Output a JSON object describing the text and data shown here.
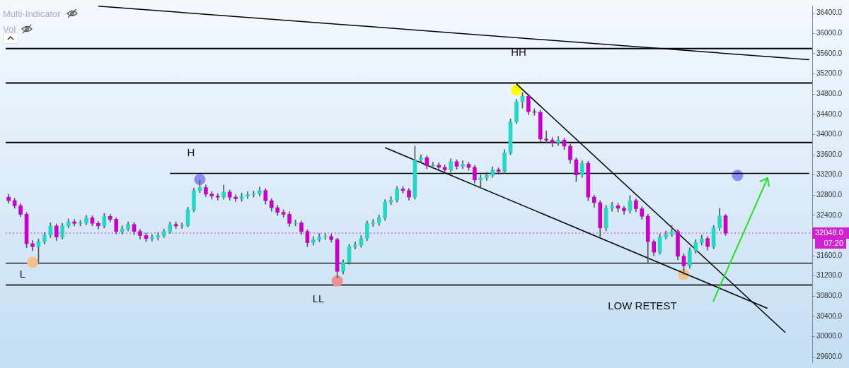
{
  "chart_data": {
    "type": "candlestick",
    "ylim": [
      29490,
      36550
    ],
    "categories": [
      null,
      null,
      null,
      null,
      null,
      null,
      null,
      null,
      null,
      null,
      null,
      null,
      null,
      null,
      null,
      null,
      null,
      null,
      null,
      null,
      null,
      null,
      null,
      null,
      null,
      null,
      null,
      null,
      null,
      null,
      null,
      null,
      null,
      null,
      null,
      null,
      null,
      null,
      null,
      null,
      null,
      null,
      null,
      null,
      null,
      null,
      null,
      null,
      null,
      null,
      null,
      null,
      null,
      null,
      null,
      null,
      null,
      null,
      null,
      null,
      null,
      null,
      null,
      null,
      null,
      null,
      null,
      null,
      null,
      null,
      null,
      null,
      null,
      null,
      null,
      null,
      null,
      null,
      null,
      null,
      null,
      null,
      null,
      null,
      null,
      null,
      null,
      null,
      null,
      null,
      null,
      null,
      null,
      null,
      null,
      null,
      null,
      null,
      null,
      null,
      null,
      null,
      null,
      null,
      null,
      null,
      null,
      null,
      null,
      null,
      null,
      null,
      null,
      null,
      null,
      null,
      null,
      null,
      null,
      null,
      null,
      null,
      null,
      null,
      null,
      null,
      null,
      null,
      null,
      null,
      null,
      null,
      null,
      null,
      null
    ],
    "yticks": [
      {
        "value": 29600,
        "label": "29600.0"
      },
      {
        "value": 30000,
        "label": "30000.0"
      },
      {
        "value": 30400,
        "label": "30400.0"
      },
      {
        "value": 30800,
        "label": "30800.0"
      },
      {
        "value": 31200,
        "label": "31200.0"
      },
      {
        "value": 31600,
        "label": "31600.0"
      },
      {
        "value": 32400,
        "label": "32400.0"
      },
      {
        "value": 32800,
        "label": "32800.0"
      },
      {
        "value": 33200,
        "label": "33200.0"
      },
      {
        "value": 33600,
        "label": "33600.0"
      },
      {
        "value": 34000,
        "label": "34000.0"
      },
      {
        "value": 34400,
        "label": "34400.0"
      },
      {
        "value": 34800,
        "label": "34800.0"
      },
      {
        "value": 35200,
        "label": "35200.0"
      },
      {
        "value": 35600,
        "label": "35600.0"
      },
      {
        "value": 36000,
        "label": "36000.0"
      },
      {
        "value": 36400,
        "label": "36400.0"
      }
    ],
    "tick_labels": "y",
    "grid": false,
    "legend": false,
    "series": [
      {
        "type": "candlestick",
        "ohlc": [
          [
            32760,
            32820,
            32640,
            32690
          ],
          [
            32690,
            32740,
            32540,
            32590
          ],
          [
            32590,
            32630,
            32370,
            32420
          ],
          [
            32420,
            32460,
            31760,
            31840
          ],
          [
            31840,
            31900,
            31700,
            31780
          ],
          [
            31780,
            31930,
            31470,
            31880
          ],
          [
            31880,
            32060,
            31830,
            32010
          ],
          [
            32010,
            32250,
            31960,
            32190
          ],
          [
            32190,
            32230,
            31900,
            31970
          ],
          [
            31970,
            32240,
            31930,
            32190
          ],
          [
            32190,
            32330,
            32150,
            32270
          ],
          [
            32270,
            32320,
            32190,
            32240
          ],
          [
            32240,
            32300,
            32190,
            32250
          ],
          [
            32250,
            32400,
            32210,
            32350
          ],
          [
            32350,
            32390,
            32190,
            32240
          ],
          [
            32240,
            32280,
            32130,
            32190
          ],
          [
            32190,
            32440,
            32150,
            32380
          ],
          [
            32380,
            32420,
            32270,
            32320
          ],
          [
            32320,
            32350,
            32030,
            32080
          ],
          [
            32080,
            32190,
            32030,
            32130
          ],
          [
            32130,
            32270,
            32090,
            32220
          ],
          [
            32220,
            32260,
            32020,
            32080
          ],
          [
            32080,
            32120,
            31930,
            32000
          ],
          [
            32000,
            32050,
            31880,
            31940
          ],
          [
            31940,
            32020,
            31890,
            31970
          ],
          [
            31970,
            32060,
            31910,
            32000
          ],
          [
            32000,
            32130,
            31960,
            32080
          ],
          [
            32080,
            32270,
            32040,
            32220
          ],
          [
            32220,
            32270,
            32140,
            32190
          ],
          [
            32190,
            32250,
            32140,
            32200
          ],
          [
            32200,
            32560,
            32170,
            32510
          ],
          [
            32510,
            32940,
            32470,
            32890
          ],
          [
            32890,
            33100,
            32850,
            32950
          ],
          [
            32950,
            33000,
            32770,
            32820
          ],
          [
            32820,
            32870,
            32720,
            32780
          ],
          [
            32780,
            32830,
            32700,
            32760
          ],
          [
            32760,
            33000,
            32720,
            32860
          ],
          [
            32860,
            32900,
            32700,
            32760
          ],
          [
            32760,
            32810,
            32670,
            32730
          ],
          [
            32730,
            32840,
            32680,
            32780
          ],
          [
            32780,
            32870,
            32730,
            32810
          ],
          [
            32810,
            32880,
            32760,
            32820
          ],
          [
            32820,
            32960,
            32780,
            32890
          ],
          [
            32890,
            32930,
            32620,
            32690
          ],
          [
            32690,
            32730,
            32480,
            32550
          ],
          [
            32550,
            32600,
            32400,
            32460
          ],
          [
            32460,
            32510,
            32360,
            32420
          ],
          [
            32420,
            32470,
            32180,
            32240
          ],
          [
            32240,
            32310,
            32190,
            32250
          ],
          [
            32250,
            32290,
            32020,
            32080
          ],
          [
            32080,
            32120,
            31780,
            31860
          ],
          [
            31860,
            31980,
            31810,
            31920
          ],
          [
            31920,
            32040,
            31880,
            31970
          ],
          [
            31970,
            32040,
            31920,
            31980
          ],
          [
            31980,
            32030,
            31870,
            31920
          ],
          [
            31920,
            31950,
            31160,
            31290
          ],
          [
            31290,
            31520,
            31240,
            31470
          ],
          [
            31470,
            31830,
            31430,
            31780
          ],
          [
            31780,
            31870,
            31730,
            31810
          ],
          [
            31810,
            32000,
            31770,
            31940
          ],
          [
            31940,
            32290,
            31900,
            32240
          ],
          [
            32240,
            32320,
            32180,
            32250
          ],
          [
            32250,
            32410,
            32200,
            32350
          ],
          [
            32350,
            32710,
            32300,
            32660
          ],
          [
            32660,
            32770,
            32610,
            32700
          ],
          [
            32700,
            32970,
            32660,
            32920
          ],
          [
            32920,
            32970,
            32840,
            32890
          ],
          [
            32890,
            32930,
            32700,
            32760
          ],
          [
            32760,
            33770,
            32720,
            33500
          ],
          [
            33500,
            33600,
            33440,
            33540
          ],
          [
            33540,
            33580,
            33320,
            33380
          ],
          [
            33380,
            33450,
            33330,
            33390
          ],
          [
            33390,
            33440,
            33290,
            33350
          ],
          [
            33350,
            33400,
            33240,
            33300
          ],
          [
            33300,
            33520,
            33260,
            33460
          ],
          [
            33460,
            33500,
            33310,
            33370
          ],
          [
            33370,
            33480,
            33320,
            33410
          ],
          [
            33410,
            33450,
            33290,
            33350
          ],
          [
            33350,
            33390,
            33040,
            33100
          ],
          [
            33100,
            33200,
            32950,
            33140
          ],
          [
            33140,
            33250,
            33090,
            33190
          ],
          [
            33190,
            33360,
            33150,
            33300
          ],
          [
            33300,
            33340,
            33210,
            33270
          ],
          [
            33270,
            33700,
            33230,
            33640
          ],
          [
            33640,
            34310,
            33600,
            34250
          ],
          [
            34250,
            34700,
            34210,
            34650
          ],
          [
            34650,
            34830,
            34520,
            34760
          ],
          [
            34760,
            34800,
            34390,
            34450
          ],
          [
            34450,
            34510,
            34380,
            34440
          ],
          [
            34440,
            34480,
            33850,
            33910
          ],
          [
            33910,
            34070,
            33830,
            33890
          ],
          [
            33890,
            33940,
            33760,
            33840
          ],
          [
            33840,
            33960,
            33780,
            33890
          ],
          [
            33890,
            33930,
            33700,
            33770
          ],
          [
            33770,
            33810,
            33430,
            33500
          ],
          [
            33500,
            33540,
            33070,
            33200
          ],
          [
            33200,
            33480,
            33150,
            33430
          ],
          [
            33430,
            33470,
            32690,
            32760
          ],
          [
            32760,
            32800,
            32560,
            32650
          ],
          [
            32650,
            32690,
            31980,
            32150
          ],
          [
            32150,
            32600,
            32090,
            32540
          ],
          [
            32540,
            32660,
            32480,
            32590
          ],
          [
            32590,
            32640,
            32470,
            32540
          ],
          [
            32540,
            32580,
            32420,
            32490
          ],
          [
            32490,
            32790,
            32440,
            32690
          ],
          [
            32690,
            32730,
            32470,
            32530
          ],
          [
            32530,
            32570,
            32320,
            32380
          ],
          [
            32380,
            32420,
            31460,
            31880
          ],
          [
            31880,
            31920,
            31600,
            31670
          ],
          [
            31670,
            32030,
            31630,
            31970
          ],
          [
            31970,
            32090,
            31930,
            32020
          ],
          [
            32020,
            32200,
            31980,
            32080
          ],
          [
            32080,
            32120,
            31520,
            31590
          ],
          [
            31590,
            31640,
            31230,
            31400
          ],
          [
            31400,
            31760,
            31350,
            31700
          ],
          [
            31700,
            31920,
            31650,
            31860
          ],
          [
            31860,
            32010,
            31810,
            31940
          ],
          [
            31940,
            31980,
            31710,
            31780
          ],
          [
            31780,
            32200,
            31740,
            32150
          ],
          [
            32150,
            32540,
            32100,
            32390
          ],
          [
            32390,
            32420,
            32000,
            32048
          ],
          null,
          null,
          null,
          null,
          null,
          null,
          null,
          null,
          null,
          null,
          null,
          null,
          null,
          null
        ],
        "colors": [
          "#c800c8",
          "#c800c8",
          "#c800c8",
          "#c800c8",
          "#c800c8",
          "#26d7c6",
          "#26d7c6",
          "#26d7c6",
          "#c800c8",
          "#26d7c6",
          "#26d7c6",
          "#c800c8",
          "#26d7c6",
          "#26d7c6",
          "#c800c8",
          "#c800c8",
          "#26d7c6",
          "#c800c8",
          "#c800c8",
          "#26d7c6",
          "#26d7c6",
          "#c800c8",
          "#c800c8",
          "#c800c8",
          "#26d7c6",
          "#26d7c6",
          "#26d7c6",
          "#26d7c6",
          "#c800c8",
          "#26d7c6",
          "#26d7c6",
          "#26d7c6",
          "#26d7c6",
          "#c800c8",
          "#c800c8",
          "#c800c8",
          "#26d7c6",
          "#c800c8",
          "#c800c8",
          "#26d7c6",
          "#26d7c6",
          "#26d7c6",
          "#26d7c6",
          "#c800c8",
          "#c800c8",
          "#c800c8",
          "#c800c8",
          "#c800c8",
          "#26d7c6",
          "#c800c8",
          "#c800c8",
          "#26d7c6",
          "#26d7c6",
          "#26d7c6",
          "#c800c8",
          "#c800c8",
          "#26d7c6",
          "#26d7c6",
          "#26d7c6",
          "#26d7c6",
          "#26d7c6",
          "#26d7c6",
          "#26d7c6",
          "#26d7c6",
          "#26d7c6",
          "#26d7c6",
          "#c800c8",
          "#c800c8",
          "#26d7c6",
          "#26d7c6",
          "#c800c8",
          "#26d7c6",
          "#c800c8",
          "#c800c8",
          "#26d7c6",
          "#c800c8",
          "#26d7c6",
          "#c800c8",
          "#c800c8",
          "#26d7c6",
          "#26d7c6",
          "#26d7c6",
          "#c800c8",
          "#26d7c6",
          "#26d7c6",
          "#26d7c6",
          "#26d7c6",
          "#c800c8",
          "#c800c8",
          "#c800c8",
          "#c800c8",
          "#c800c8",
          "#26d7c6",
          "#c800c8",
          "#c800c8",
          "#c800c8",
          "#26d7c6",
          "#c800c8",
          "#c800c8",
          "#c800c8",
          "#26d7c6",
          "#26d7c6",
          "#c800c8",
          "#c800c8",
          "#26d7c6",
          "#c800c8",
          "#c800c8",
          "#c800c8",
          "#c800c8",
          "#26d7c6",
          "#26d7c6",
          "#26d7c6",
          "#c800c8",
          "#c800c8",
          "#26d7c6",
          "#26d7c6",
          "#26d7c6",
          "#c800c8",
          "#26d7c6",
          "#26d7c6",
          "#c800c8",
          null,
          null,
          null,
          null,
          null,
          null,
          null,
          null,
          null,
          null,
          null,
          null,
          null,
          null
        ]
      },
      {
        "type": "line",
        "color": "#000000",
        "values": [
          null,
          null,
          null,
          null,
          null,
          null,
          null,
          null,
          null,
          null,
          null,
          null,
          null,
          null,
          null,
          36540,
          null,
          null,
          null,
          null,
          null,
          null,
          null,
          null,
          null,
          null,
          null,
          null,
          null,
          null,
          null,
          null,
          null,
          null,
          null,
          null,
          null,
          null,
          null,
          null,
          null,
          null,
          null,
          null,
          null,
          null,
          null,
          null,
          null,
          null,
          null,
          null,
          null,
          null,
          null,
          null,
          null,
          null,
          null,
          null,
          null,
          null,
          null,
          null,
          null,
          null,
          null,
          null,
          null,
          null,
          null,
          null,
          null,
          null,
          null,
          null,
          null,
          null,
          null,
          null,
          null,
          null,
          null,
          null,
          null,
          null,
          null,
          null,
          null,
          null,
          null,
          null,
          null,
          null,
          null,
          null,
          null,
          null,
          null,
          null,
          null,
          null,
          null,
          null,
          null,
          null,
          null,
          null,
          null,
          null,
          null,
          null,
          null,
          null,
          null,
          null,
          null,
          null,
          null,
          null,
          null,
          null,
          null,
          null,
          null,
          null,
          null,
          null,
          null,
          null,
          null,
          null,
          null,
          null,
          35480
        ]
      },
      {
        "type": "line",
        "color": "#000000",
        "values": [
          null,
          null,
          null,
          null,
          null,
          null,
          null,
          null,
          null,
          null,
          null,
          null,
          null,
          null,
          null,
          null,
          null,
          null,
          null,
          null,
          null,
          null,
          null,
          null,
          null,
          null,
          null,
          null,
          null,
          null,
          null,
          null,
          null,
          null,
          null,
          null,
          null,
          null,
          null,
          null,
          null,
          null,
          null,
          null,
          null,
          null,
          null,
          null,
          null,
          null,
          null,
          null,
          null,
          null,
          null,
          null,
          null,
          null,
          null,
          null,
          null,
          null,
          null,
          null,
          null,
          null,
          null,
          null,
          null,
          null,
          null,
          null,
          null,
          null,
          null,
          null,
          null,
          null,
          null,
          null,
          null,
          null,
          null,
          null,
          null,
          35000,
          null,
          null,
          null,
          null,
          null,
          null,
          null,
          null,
          null,
          null,
          null,
          null,
          null,
          null,
          null,
          null,
          null,
          null,
          null,
          null,
          null,
          null,
          null,
          null,
          null,
          null,
          null,
          null,
          null,
          null,
          null,
          null,
          null,
          null,
          null,
          null,
          null,
          null,
          null,
          null,
          null,
          null,
          null,
          null,
          30080,
          null,
          null,
          null,
          null
        ]
      },
      {
        "type": "line",
        "color": "#000000",
        "values": [
          null,
          null,
          null,
          null,
          null,
          null,
          null,
          null,
          null,
          null,
          null,
          null,
          null,
          null,
          null,
          null,
          null,
          null,
          null,
          null,
          null,
          null,
          null,
          null,
          null,
          null,
          null,
          null,
          null,
          null,
          null,
          null,
          null,
          null,
          null,
          null,
          null,
          null,
          null,
          null,
          null,
          null,
          null,
          null,
          null,
          null,
          null,
          null,
          null,
          null,
          null,
          null,
          null,
          null,
          null,
          null,
          null,
          null,
          null,
          null,
          null,
          null,
          null,
          33740,
          null,
          null,
          null,
          null,
          null,
          null,
          null,
          null,
          null,
          null,
          null,
          null,
          null,
          null,
          null,
          null,
          null,
          null,
          null,
          null,
          null,
          null,
          null,
          null,
          null,
          null,
          null,
          null,
          null,
          null,
          null,
          null,
          null,
          null,
          null,
          null,
          null,
          null,
          null,
          null,
          null,
          null,
          null,
          null,
          null,
          null,
          null,
          null,
          null,
          null,
          null,
          null,
          null,
          null,
          null,
          null,
          null,
          null,
          null,
          null,
          null,
          null,
          null,
          30560,
          null,
          null,
          null,
          null,
          null,
          null,
          null
        ]
      },
      {
        "type": "line",
        "color": "#000000",
        "values": [
          null,
          null,
          null,
          null,
          null,
          null,
          null,
          null,
          null,
          null,
          null,
          null,
          null,
          null,
          null,
          null,
          null,
          null,
          null,
          null,
          null,
          null,
          null,
          null,
          null,
          null,
          null,
          33230,
          null,
          null,
          null,
          null,
          null,
          null,
          null,
          null,
          null,
          null,
          null,
          null,
          null,
          null,
          null,
          null,
          null,
          null,
          null,
          null,
          null,
          null,
          null,
          null,
          null,
          null,
          null,
          null,
          null,
          null,
          null,
          null,
          null,
          null,
          null,
          null,
          null,
          null,
          null,
          null,
          null,
          null,
          null,
          null,
          null,
          null,
          null,
          null,
          null,
          null,
          null,
          null,
          null,
          null,
          null,
          null,
          null,
          null,
          null,
          null,
          null,
          null,
          null,
          null,
          null,
          null,
          null,
          null,
          null,
          null,
          null,
          null,
          null,
          null,
          null,
          null,
          null,
          null,
          null,
          null,
          null,
          null,
          null,
          null,
          null,
          null,
          null,
          null,
          null,
          null,
          null,
          null,
          null,
          null,
          null,
          null,
          null,
          null,
          null,
          null,
          null,
          null,
          null,
          null,
          null,
          null,
          33230
        ]
      },
      {
        "type": "scatter",
        "marker": "circle",
        "values": [
          null,
          null,
          null,
          null,
          31470,
          null,
          null,
          null,
          null,
          null,
          null,
          null,
          null,
          null,
          null,
          null,
          null,
          null,
          null,
          null,
          null,
          null,
          null,
          null,
          null,
          null,
          null,
          null,
          null,
          null,
          null,
          null,
          33110,
          null,
          null,
          null,
          null,
          null,
          null,
          null,
          null,
          null,
          null,
          null,
          null,
          null,
          null,
          null,
          null,
          null,
          null,
          null,
          null,
          null,
          null,
          31100,
          null,
          null,
          null,
          null,
          null,
          null,
          null,
          null,
          null,
          null,
          null,
          null,
          null,
          null,
          null,
          null,
          null,
          null,
          null,
          null,
          null,
          null,
          null,
          null,
          null,
          null,
          null,
          null,
          null,
          34880,
          null,
          null,
          null,
          null,
          null,
          null,
          null,
          null,
          null,
          null,
          null,
          null,
          null,
          null,
          null,
          null,
          null,
          null,
          null,
          null,
          null,
          null,
          null,
          null,
          null,
          null,
          null,
          31230,
          null,
          null,
          null,
          null,
          null,
          null,
          null,
          null,
          33190,
          null,
          null,
          null,
          null,
          null,
          null,
          null,
          null,
          null,
          null,
          null,
          null
        ],
        "colors": [
          null,
          null,
          null,
          null,
          "#f2c38c",
          null,
          null,
          null,
          null,
          null,
          null,
          null,
          null,
          null,
          null,
          null,
          null,
          null,
          null,
          null,
          null,
          null,
          null,
          null,
          null,
          null,
          null,
          null,
          null,
          null,
          null,
          null,
          "#8a8ef4",
          null,
          null,
          null,
          null,
          null,
          null,
          null,
          null,
          null,
          null,
          null,
          null,
          null,
          null,
          null,
          null,
          null,
          null,
          null,
          null,
          null,
          null,
          "#ef8f95",
          null,
          null,
          null,
          null,
          null,
          null,
          null,
          null,
          null,
          null,
          null,
          null,
          null,
          null,
          null,
          null,
          null,
          null,
          null,
          null,
          null,
          null,
          null,
          null,
          null,
          null,
          null,
          null,
          null,
          "#ffff00",
          null,
          null,
          null,
          null,
          null,
          null,
          null,
          null,
          null,
          null,
          null,
          null,
          null,
          null,
          null,
          null,
          null,
          null,
          null,
          null,
          null,
          null,
          null,
          null,
          null,
          null,
          null,
          "#f2c38c",
          null,
          null,
          null,
          null,
          null,
          null,
          null,
          null,
          "#8a8ef4",
          null,
          null,
          null,
          null,
          null,
          null,
          null,
          null,
          null,
          null,
          null,
          null
        ]
      }
    ],
    "ref_lines": [
      {
        "axis": "y",
        "value": 35700,
        "color": "#000000"
      },
      {
        "axis": "y",
        "value": 35020,
        "color": "#000000"
      },
      {
        "axis": "y",
        "value": 33840,
        "color": "#000000"
      },
      {
        "axis": "y",
        "value": 31450,
        "color": "#555555"
      },
      {
        "axis": "y",
        "value": 31020,
        "color": "#333333"
      },
      {
        "axis": "y",
        "value": 32048,
        "label": "32048.0",
        "color": "#d020d0",
        "line_style": "dotted"
      }
    ],
    "annotations": [
      "Multi-Indicator",
      "Vol",
      "07:20",
      "L",
      "H",
      "LL",
      "HH",
      "LOW RETEST"
    ]
  }
}
